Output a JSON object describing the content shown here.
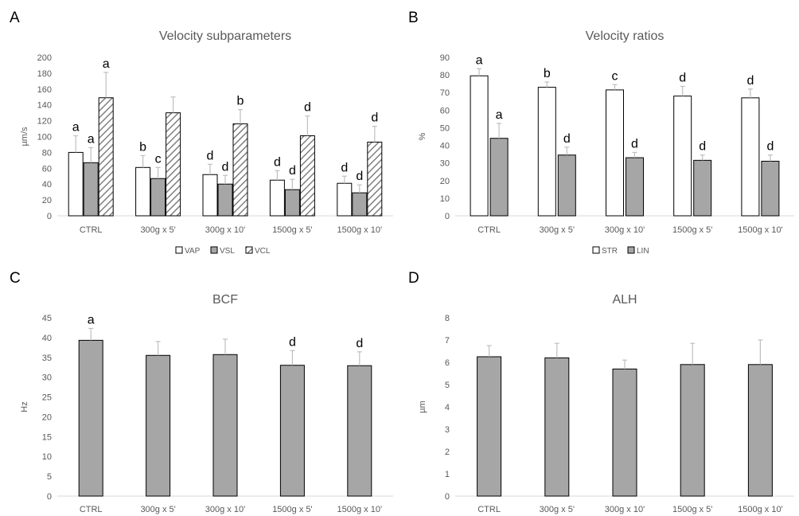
{
  "colors": {
    "white_fill": "#ffffff",
    "grey_fill": "#a6a6a6",
    "hatch": "#808080",
    "outline": "#000000",
    "error_bar": "#bfbfbf",
    "axis_text": "#595959"
  },
  "chart_data": [
    {
      "panel": "A",
      "type": "bar",
      "title": "Velocity subparameters",
      "ylabel": "µm/s",
      "ylim": [
        0,
        200
      ],
      "yticks": [
        "0",
        "20",
        "40",
        "60",
        "80",
        "100",
        "120",
        "140",
        "160",
        "180",
        "200"
      ],
      "categories": [
        "CTRL",
        "300g x 5'",
        "300g x 10'",
        "1500g x 5'",
        "1500g x 10'"
      ],
      "series": [
        {
          "name": "VAP",
          "fill": "white",
          "values": [
            80,
            61,
            52,
            45,
            41
          ],
          "errors": [
            21,
            15,
            13,
            12,
            9
          ],
          "labels": [
            "a",
            "b",
            "d",
            "d",
            "d"
          ]
        },
        {
          "name": "VSL",
          "fill": "grey",
          "values": [
            67,
            47,
            40,
            33,
            29
          ],
          "errors": [
            19,
            14,
            11,
            13,
            10
          ],
          "labels": [
            "a",
            "c",
            "d",
            "d",
            "d"
          ]
        },
        {
          "name": "VCL",
          "fill": "hatch",
          "values": [
            149,
            130,
            116,
            101,
            93
          ],
          "errors": [
            32,
            20,
            18,
            25,
            20
          ],
          "labels": [
            "a",
            "",
            "b",
            "d",
            "d"
          ]
        }
      ],
      "legend": "bottom"
    },
    {
      "panel": "B",
      "type": "bar",
      "title": "Velocity ratios",
      "ylabel": "%",
      "ylim": [
        0,
        90
      ],
      "yticks": [
        "0",
        "10",
        "20",
        "30",
        "40",
        "50",
        "60",
        "70",
        "80",
        "90"
      ],
      "categories": [
        "CTRL",
        "300g x 5'",
        "300g x 10'",
        "1500g x 5'",
        "1500g x 10'"
      ],
      "series": [
        {
          "name": "STR",
          "fill": "white",
          "values": [
            79.5,
            73,
            71.5,
            68,
            67
          ],
          "errors": [
            4,
            3,
            3,
            5.5,
            5
          ],
          "labels": [
            "a",
            "b",
            "c",
            "d",
            "d"
          ]
        },
        {
          "name": "LIN",
          "fill": "grey",
          "values": [
            44,
            34.5,
            33,
            31.5,
            31
          ],
          "errors": [
            8.5,
            4.5,
            3,
            3,
            3.5
          ],
          "labels": [
            "a",
            "d",
            "d",
            "d",
            "d"
          ]
        }
      ],
      "legend": "bottom"
    },
    {
      "panel": "C",
      "type": "bar",
      "title": "BCF",
      "ylabel": "Hz",
      "ylim": [
        0,
        45
      ],
      "yticks": [
        "0",
        "5",
        "10",
        "15",
        "20",
        "25",
        "30",
        "35",
        "40",
        "45"
      ],
      "categories": [
        "CTRL",
        "300g x 5'",
        "300g x 10'",
        "1500g x 5'",
        "1500g x 10'"
      ],
      "series": [
        {
          "fill": "grey",
          "values": [
            39.3,
            35.5,
            35.7,
            33,
            32.9
          ],
          "errors": [
            3,
            3.5,
            3.9,
            3.7,
            3.5
          ],
          "labels": [
            "a",
            "",
            "",
            "d",
            "d"
          ]
        }
      ]
    },
    {
      "panel": "D",
      "type": "bar",
      "title": "ALH",
      "ylabel": "µm",
      "ylim": [
        0,
        8
      ],
      "yticks": [
        "0",
        "1",
        "2",
        "3",
        "4",
        "5",
        "6",
        "7",
        "8"
      ],
      "categories": [
        "CTRL",
        "300g x 5'",
        "300g x 10'",
        "1500g x 5'",
        "1500g x 10'"
      ],
      "series": [
        {
          "fill": "grey",
          "values": [
            6.25,
            6.2,
            5.7,
            5.9,
            5.9
          ],
          "errors": [
            0.5,
            0.65,
            0.4,
            0.95,
            1.1
          ],
          "labels": [
            "",
            "",
            "",
            "",
            ""
          ]
        }
      ]
    }
  ]
}
